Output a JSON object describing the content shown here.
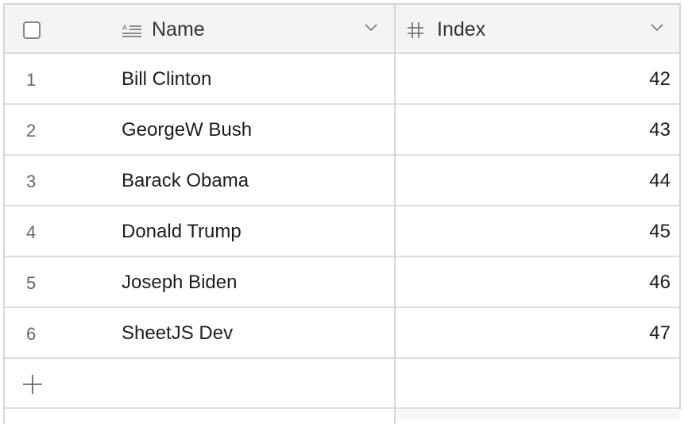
{
  "header": {
    "columns": [
      {
        "label": "Name",
        "icon": "text-lines-icon"
      },
      {
        "label": "Index",
        "icon": "hash-icon"
      }
    ]
  },
  "rows": [
    {
      "num": "1",
      "name": "Bill Clinton",
      "index": "42"
    },
    {
      "num": "2",
      "name": "GeorgeW Bush",
      "index": "43"
    },
    {
      "num": "3",
      "name": "Barack Obama",
      "index": "44"
    },
    {
      "num": "4",
      "name": "Donald Trump",
      "index": "45"
    },
    {
      "num": "5",
      "name": "Joseph Biden",
      "index": "46"
    },
    {
      "num": "6",
      "name": "SheetJS Dev",
      "index": "47"
    }
  ]
}
